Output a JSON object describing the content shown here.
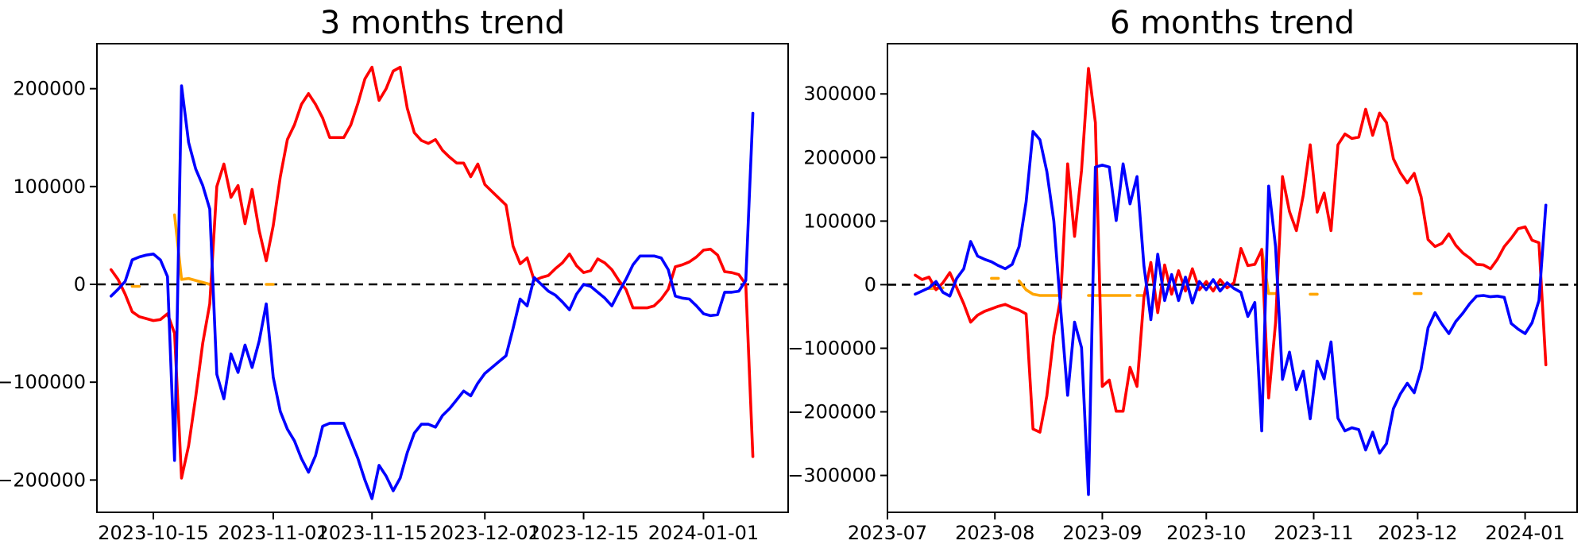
{
  "colors": {
    "background": "#ffffff",
    "axis": "#000000",
    "red_series": "#ff0000",
    "blue_series": "#0000ff",
    "orange_series": "#ffa500",
    "zero_line": "#000000"
  },
  "chart_data": [
    {
      "type": "line",
      "title": "3 months trend",
      "xlabel": "",
      "ylabel": "",
      "grid": false,
      "legend": null,
      "xlim": [
        "2023-10-07",
        "2024-01-13"
      ],
      "ylim": [
        -233000,
        246000
      ],
      "zero_line": 0,
      "x_ticks": [
        {
          "label": "2023-10-15",
          "date": "2023-10-15"
        },
        {
          "label": "2023-11-01",
          "date": "2023-11-01"
        },
        {
          "label": "2023-11-15",
          "date": "2023-11-15"
        },
        {
          "label": "2023-12-01",
          "date": "2023-12-01"
        },
        {
          "label": "2023-12-15",
          "date": "2023-12-15"
        },
        {
          "label": "2024-01-01",
          "date": "2024-01-01"
        }
      ],
      "y_ticks": [
        {
          "label": "200000",
          "value": 200000
        },
        {
          "label": "100000",
          "value": 100000
        },
        {
          "label": "0",
          "value": 0
        },
        {
          "label": "−100000",
          "value": -100000
        },
        {
          "label": "−200000",
          "value": -200000
        }
      ],
      "series": [
        {
          "name": "red-line",
          "color": "#ff0000",
          "segments": [
            {
              "start": "2023-10-09",
              "step_days": 1,
              "values": [
                15000,
                5000,
                -10000,
                -28000,
                -33000,
                -35000,
                -37000,
                -36000,
                -30000,
                -50000,
                -198000,
                -165000,
                -115000,
                -60000,
                -20000,
                100000,
                123000,
                89000,
                101000,
                62000,
                97000,
                55000,
                24000,
                60000,
                110000,
                148000,
                163000,
                184000,
                195000,
                184000,
                170000,
                150000,
                150000,
                150000,
                163000,
                185000,
                210000,
                222000,
                188000,
                200000,
                218000,
                222000,
                180000,
                155000,
                147000,
                144000,
                148000,
                137000,
                130000,
                124000,
                124000,
                110000,
                123000,
                102000,
                95000,
                88000,
                81000,
                39000,
                21000,
                27000,
                4000,
                7000,
                9000,
                16000,
                22000,
                31000,
                19000,
                12000,
                14000,
                26000,
                22000,
                15000,
                4000,
                -5000,
                -24000,
                -24000,
                -24000,
                -22000,
                -15000,
                -5000,
                18000,
                20000,
                23000,
                28000,
                35000,
                36000,
                30000,
                13000,
                12000,
                10000,
                0,
                -176000
              ]
            }
          ]
        },
        {
          "name": "blue-line",
          "color": "#0000ff",
          "segments": [
            {
              "start": "2023-10-09",
              "step_days": 1,
              "values": [
                -12000,
                -5000,
                3000,
                25000,
                28000,
                30000,
                31000,
                25000,
                8000,
                -180000,
                203000,
                145000,
                118000,
                101000,
                77000,
                -92000,
                -117000,
                -71000,
                -90000,
                -62000,
                -85000,
                -58000,
                -20000,
                -95000,
                -130000,
                -148000,
                -160000,
                -178000,
                -192000,
                -175000,
                -145000,
                -142000,
                -142000,
                -142000,
                -160000,
                -178000,
                -200000,
                -219000,
                -185000,
                -196000,
                -211000,
                -198000,
                -172000,
                -152000,
                -143000,
                -143000,
                -146000,
                -134000,
                -127000,
                -118000,
                -109000,
                -114000,
                -101000,
                -91000,
                -85000,
                -79000,
                -73000,
                -45000,
                -15000,
                -22000,
                7000,
                0,
                -7000,
                -11000,
                -18000,
                -26000,
                -10000,
                0,
                -2000,
                -8000,
                -14000,
                -22000,
                -8000,
                5000,
                20000,
                29000,
                29000,
                29000,
                27000,
                15000,
                -12000,
                -14000,
                -15000,
                -22000,
                -30000,
                -32000,
                -31000,
                -8000,
                -8000,
                -7000,
                4000,
                175000
              ]
            }
          ]
        },
        {
          "name": "orange-line",
          "color": "#ffa500",
          "segments": [
            {
              "start": "2023-10-12",
              "step_days": 1,
              "values": [
                -2000,
                -2000
              ]
            },
            {
              "start": "2023-10-18",
              "step_days": 1,
              "values": [
                71000,
                5000,
                6000,
                4000,
                2000,
                0
              ]
            },
            {
              "start": "2023-10-31",
              "step_days": 1,
              "values": [
                0,
                0
              ]
            }
          ]
        }
      ]
    },
    {
      "type": "line",
      "title": "6 months trend",
      "xlabel": "",
      "ylabel": "",
      "grid": false,
      "legend": null,
      "xlim": [
        "2023-07-01",
        "2024-01-16"
      ],
      "ylim": [
        -358000,
        379000
      ],
      "zero_line": 0,
      "x_ticks": [
        {
          "label": "2023-07",
          "date": "2023-07-01"
        },
        {
          "label": "2023-08",
          "date": "2023-08-01"
        },
        {
          "label": "2023-09",
          "date": "2023-09-01"
        },
        {
          "label": "2023-10",
          "date": "2023-10-01"
        },
        {
          "label": "2023-11",
          "date": "2023-11-01"
        },
        {
          "label": "2023-12",
          "date": "2023-12-01"
        },
        {
          "label": "2024-01",
          "date": "2024-01-01"
        }
      ],
      "y_ticks": [
        {
          "label": "300000",
          "value": 300000
        },
        {
          "label": "200000",
          "value": 200000
        },
        {
          "label": "100000",
          "value": 100000
        },
        {
          "label": "0",
          "value": 0
        },
        {
          "label": "−100000",
          "value": -100000
        },
        {
          "label": "−200000",
          "value": -200000
        },
        {
          "label": "−300000",
          "value": -300000
        }
      ],
      "series": [
        {
          "name": "red-line",
          "color": "#ff0000",
          "segments": [
            {
              "start": "2023-07-09",
              "step_days": 2,
              "values": [
                15000,
                8000,
                12000,
                -8000,
                3000,
                19000,
                -5000,
                -30000,
                -59000,
                -48000,
                -42000,
                -38000,
                -34000,
                -31000,
                -36000,
                -40000,
                -46000,
                -227000,
                -232000,
                -175000,
                -80000,
                -20000,
                190000,
                76000,
                180000,
                340000,
                255000,
                -160000,
                -150000,
                -199000,
                -199000,
                -130000,
                -160000,
                -20000,
                35000,
                -44000,
                31000,
                -15000,
                22000,
                -10000,
                25000,
                -8000,
                5000,
                -10000,
                8000,
                -5000,
                3000,
                57000,
                30000,
                32000,
                55000,
                -178000,
                -60000,
                170000,
                115000,
                85000,
                141000,
                220000,
                114000,
                144000,
                85000,
                220000,
                237000,
                230000,
                232000,
                276000,
                235000,
                270000,
                255000,
                198000,
                176000,
                160000,
                175000,
                138000,
                71000,
                60000,
                65000,
                80000,
                62000,
                50000,
                42000,
                32000,
                31000,
                25000,
                40000,
                60000,
                73000,
                88000,
                91000,
                70000,
                66000,
                -126000
              ]
            }
          ]
        },
        {
          "name": "blue-line",
          "color": "#0000ff",
          "segments": [
            {
              "start": "2023-07-09",
              "step_days": 2,
              "values": [
                -15000,
                -10000,
                -5000,
                5000,
                -12000,
                -18000,
                10000,
                25000,
                68000,
                45000,
                40000,
                36000,
                30000,
                25000,
                32000,
                60000,
                130000,
                241000,
                228000,
                178000,
                100000,
                -40000,
                -174000,
                -59000,
                -99000,
                -330000,
                185000,
                188000,
                185000,
                101000,
                190000,
                127000,
                170000,
                30000,
                -55000,
                48000,
                -25000,
                16000,
                -25000,
                12000,
                -29000,
                5000,
                -8000,
                8000,
                -10000,
                3000,
                -6000,
                -12000,
                -50000,
                -28000,
                -230000,
                155000,
                60000,
                -149000,
                -106000,
                -165000,
                -136000,
                -211000,
                -120000,
                -148000,
                -90000,
                -210000,
                -230000,
                -225000,
                -228000,
                -260000,
                -232000,
                -265000,
                -250000,
                -195000,
                -172000,
                -155000,
                -170000,
                -133000,
                -68000,
                -44000,
                -62000,
                -77000,
                -58000,
                -45000,
                -30000,
                -18000,
                -17000,
                -19000,
                -18000,
                -20000,
                -61000,
                -70000,
                -77000,
                -60000,
                -25000,
                125000
              ]
            }
          ]
        },
        {
          "name": "orange-line",
          "color": "#ffa500",
          "segments": [
            {
              "start": "2023-07-13",
              "step_days": 2,
              "values": [
                -6000,
                -6000,
                -5000
              ]
            },
            {
              "start": "2023-07-31",
              "step_days": 2,
              "values": [
                10000,
                10000
              ]
            },
            {
              "start": "2023-08-08",
              "step_days": 2,
              "values": [
                6000,
                -8000,
                -15000,
                -17000,
                -17000,
                -17000,
                -17000
              ]
            },
            {
              "start": "2023-08-28",
              "step_days": 2,
              "values": [
                -17000,
                -17000,
                -17000,
                -17000,
                -17000,
                -17000,
                -17000
              ]
            },
            {
              "start": "2023-09-11",
              "step_days": 2,
              "values": [
                -17000,
                -17000
              ]
            },
            {
              "start": "2023-10-17",
              "step_days": 2,
              "values": [
                56000,
                -14000,
                -14000
              ]
            },
            {
              "start": "2023-10-31",
              "step_days": 2,
              "values": [
                -15000,
                -15000
              ]
            },
            {
              "start": "2023-11-30",
              "step_days": 2,
              "values": [
                -14000,
                -14000
              ]
            }
          ]
        }
      ]
    }
  ]
}
